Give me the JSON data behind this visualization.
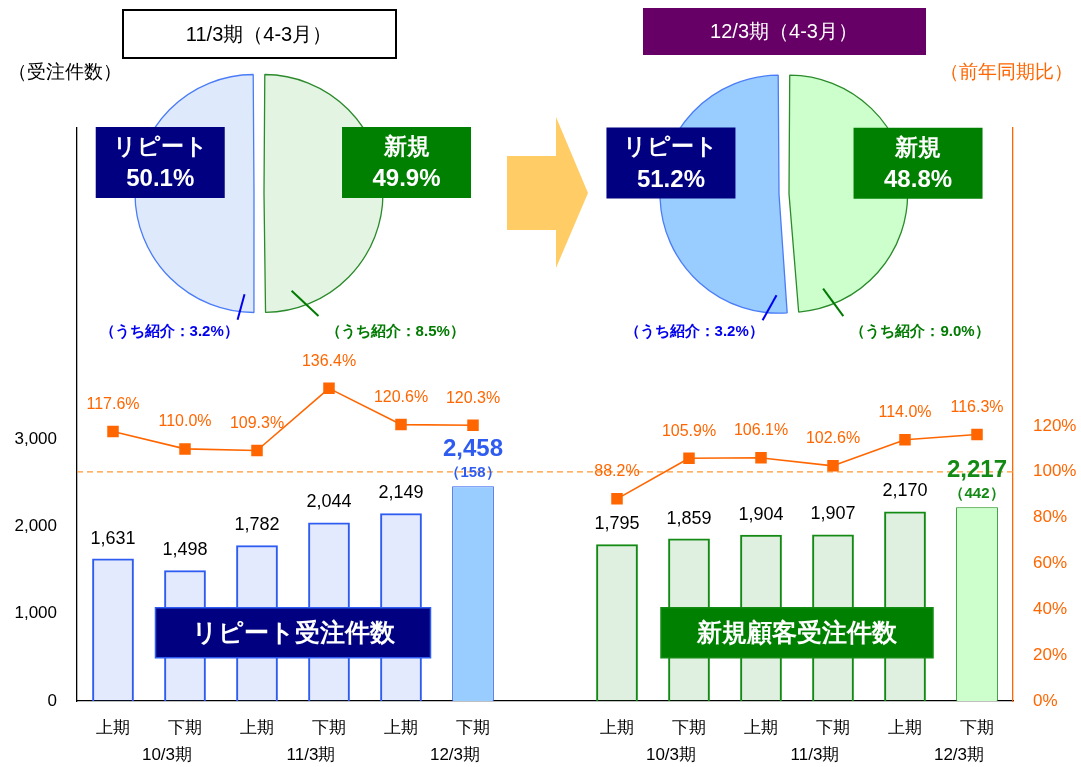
{
  "chart_data": [
    {
      "type": "pie",
      "title": "11/3期（4-3月）",
      "categories": [
        "新規",
        "リピート"
      ],
      "values": [
        49.9,
        50.1
      ],
      "colors": [
        "#e3f4e3",
        "#dfe9fc"
      ],
      "value_labels": [
        "49.9%",
        "50.1%"
      ],
      "annotations": [
        {
          "text": "（うち紹介：8.5%）",
          "x": "新規"
        },
        {
          "text": "（うち紹介：3.2%）",
          "x": "リピート"
        }
      ]
    },
    {
      "type": "pie",
      "title": "12/3期（4-3月）",
      "categories": [
        "新規",
        "リピート"
      ],
      "values": [
        48.8,
        51.2
      ],
      "colors": [
        "#ccffcc",
        "#99ccff"
      ],
      "value_labels": [
        "48.8%",
        "51.2%"
      ],
      "annotations": [
        {
          "text": "（うち紹介：9.0%）",
          "x": "新規"
        },
        {
          "text": "（うち紹介：3.2%）",
          "x": "リピート"
        }
      ]
    },
    {
      "type": "bar",
      "ylabel": "（受注件数）",
      "y2label": "（前年同期比）",
      "categories": [
        "上期",
        "下期",
        "上期",
        "下期",
        "上期",
        "下期",
        null,
        "上期",
        "下期",
        "上期",
        "下期",
        "上期",
        "下期"
      ],
      "series": [
        {
          "name": "リピート受注件数",
          "type": "bar",
          "color": "#2f5cf0",
          "colors": [
            "#2f5cf0",
            "#2f5cf0",
            "#2f5cf0",
            "#2f5cf0",
            "#2f5cf0",
            "#99ccff",
            null,
            null,
            null,
            null,
            null,
            null,
            null
          ],
          "values": [
            1631,
            1498,
            1782,
            2044,
            2149,
            2458,
            null,
            null,
            null,
            null,
            null,
            null,
            null
          ],
          "value_labels": [
            "1,631",
            "1,498",
            "1,782",
            "2,044",
            "2,149",
            "2,458",
            null,
            null,
            null,
            null,
            null,
            null,
            null
          ]
        },
        {
          "name": "新規顧客受注件数",
          "type": "bar",
          "color": "#138a13",
          "colors": [
            null,
            null,
            null,
            null,
            null,
            null,
            null,
            "#138a13",
            "#138a13",
            "#138a13",
            "#138a13",
            "#138a13",
            "#ccffcc"
          ],
          "values": [
            null,
            null,
            null,
            null,
            null,
            null,
            null,
            1795,
            1859,
            1904,
            1907,
            2170,
            2217
          ],
          "value_labels": [
            null,
            null,
            null,
            null,
            null,
            null,
            null,
            "1,795",
            "1,859",
            "1,904",
            "1,907",
            "2,170",
            "2,217"
          ]
        },
        {
          "type": "line",
          "axis": "y2",
          "color": "#ff6600",
          "values": [
            117.6,
            110.0,
            109.3,
            136.4,
            120.6,
            120.3,
            null,
            88.2,
            105.9,
            106.1,
            102.6,
            114.0,
            116.3
          ],
          "value_labels": [
            "117.6%",
            "110.0%",
            "109.3%",
            "136.4%",
            "120.6%",
            "120.3%",
            null,
            "88.2%",
            "105.9%",
            "106.1%",
            "102.6%",
            "114.0%",
            "116.3%"
          ]
        }
      ],
      "ylim": [
        0,
        6560
      ],
      "yticks": [
        0,
        {
          "value": 1000,
          "label": "1,000"
        },
        {
          "value": 2000,
          "label": "2,000"
        },
        {
          "value": 3000,
          "label": "3,000"
        }
      ],
      "y2lim": [
        0,
        250
      ],
      "y2ticks": [
        {
          "value": 0,
          "label": "0%"
        },
        {
          "value": 20,
          "label": "20%"
        },
        {
          "value": 40,
          "label": "40%"
        },
        {
          "value": 60,
          "label": "60%"
        },
        {
          "value": 80,
          "label": "80%"
        },
        {
          "value": 100,
          "label": "100%"
        },
        {
          "value": 120,
          "label": "120%"
        }
      ],
      "marker": "square",
      "ref_lines": [
        {
          "axis": "y2",
          "value": 100,
          "color": "#ff9933",
          "line_style": "dashed"
        }
      ],
      "annotations": [
        "10/3期",
        "11/3期",
        "12/3期",
        "10/3期",
        "11/3期",
        "12/3期",
        "（158）",
        "（442）"
      ]
    }
  ]
}
